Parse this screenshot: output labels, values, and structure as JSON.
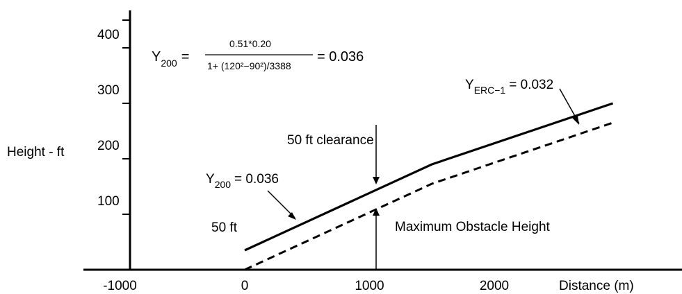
{
  "chart_data": {
    "type": "line",
    "title": "",
    "xlabel": "Distance (m)",
    "ylabel": "Height - ft",
    "xlim": [
      -1000,
      2950
    ],
    "ylim": [
      0,
      450
    ],
    "x_ticks": [
      -1000,
      0,
      1000,
      2000
    ],
    "y_ticks": [
      100,
      200,
      300,
      400
    ],
    "grid": false,
    "legend": "none",
    "series": [
      {
        "style": "solid",
        "x": [
          0,
          1500,
          2950
        ],
        "y": [
          35,
          190,
          300
        ]
      },
      {
        "style": "dashed",
        "x": [
          0,
          1500,
          2950
        ],
        "y": [
          0,
          155,
          265
        ]
      }
    ],
    "annotations": {
      "formula": {
        "lhs": "Y",
        "lhs_sub": "200",
        "eq": "=",
        "numerator": "0.51*0.20",
        "denominator": "1+ (120²−90²)/3388",
        "result": "= 0.036"
      },
      "y_erc": {
        "base": "Y",
        "sub": "ERC−1",
        "value": "= 0.032"
      },
      "y_200": {
        "base": "Y",
        "sub": "200",
        "value": "= 0.036"
      },
      "clearance": "50 ft clearance",
      "fifty_ft": "50 ft",
      "max_obstacle": "Maximum Obstacle Height"
    }
  }
}
